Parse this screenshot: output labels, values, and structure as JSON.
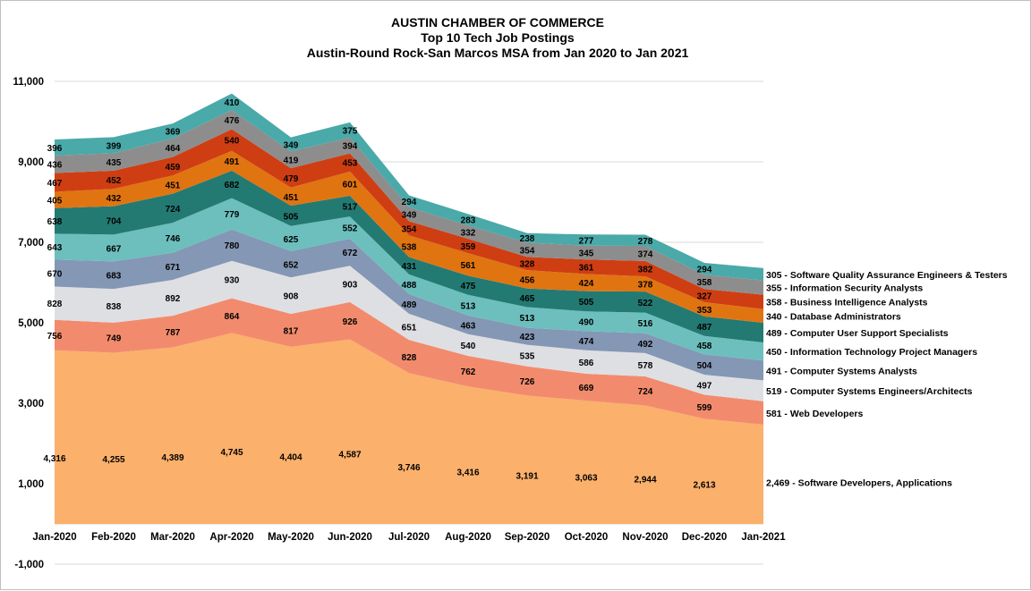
{
  "chart_data": {
    "type": "area",
    "stacked": true,
    "title": [
      "AUSTIN CHAMBER OF COMMERCE",
      "Top 10 Tech Job Postings",
      "Austin-Round Rock-San Marcos MSA from Jan 2020 to Jan 2021"
    ],
    "ylim": [
      -1000,
      11000
    ],
    "y_ticks": [
      -1000,
      1000,
      3000,
      5000,
      7000,
      9000,
      11000
    ],
    "y_tick_labels": [
      "-1,000",
      "1,000",
      "3,000",
      "5,000",
      "7,000",
      "9,000",
      "11,000"
    ],
    "grid": true,
    "categories": [
      "Jan-2020",
      "Feb-2020",
      "Mar-2020",
      "Apr-2020",
      "May-2020",
      "Jun-2020",
      "Jul-2020",
      "Aug-2020",
      "Sep-2020",
      "Oct-2020",
      "Nov-2020",
      "Dec-2020",
      "Jan-2021"
    ],
    "series": [
      {
        "name": "Software Developers, Applications",
        "color": "#fbb06b",
        "values": [
          4316,
          4255,
          4389,
          4745,
          4404,
          4587,
          3746,
          3416,
          3191,
          3063,
          2944,
          2613,
          2469
        ],
        "labels": [
          "4,316",
          "4,255",
          "4,389",
          "4,745",
          "4,404",
          "4,587",
          "3,746",
          "3,416",
          "3,191",
          "3,063",
          "2,944",
          "2,613",
          "2,469"
        ]
      },
      {
        "name": "Web Developers",
        "color": "#f28b6d",
        "values": [
          756,
          749,
          787,
          864,
          817,
          926,
          828,
          762,
          726,
          669,
          724,
          599,
          581
        ],
        "labels": [
          "756",
          "749",
          "787",
          "864",
          "817",
          "926",
          "828",
          "762",
          "726",
          "669",
          "724",
          "599",
          "581"
        ]
      },
      {
        "name": "Computer Systems Engineers/Architects",
        "color": "#dedfe3",
        "values": [
          828,
          838,
          892,
          930,
          908,
          903,
          651,
          540,
          535,
          586,
          578,
          497,
          519
        ],
        "labels": [
          "828",
          "838",
          "892",
          "930",
          "908",
          "903",
          "651",
          "540",
          "535",
          "586",
          "578",
          "497",
          "519"
        ]
      },
      {
        "name": "Computer Systems Analysts",
        "color": "#8497b4",
        "values": [
          670,
          683,
          671,
          780,
          652,
          672,
          489,
          463,
          423,
          474,
          492,
          504,
          491
        ],
        "labels": [
          "670",
          "683",
          "671",
          "780",
          "652",
          "672",
          "489",
          "463",
          "423",
          "474",
          "492",
          "504",
          "491"
        ]
      },
      {
        "name": "Information Technology Project Managers",
        "color": "#6cbfbd",
        "values": [
          643,
          667,
          746,
          779,
          625,
          552,
          488,
          513,
          513,
          490,
          516,
          458,
          450
        ],
        "labels": [
          "643",
          "667",
          "746",
          "779",
          "625",
          "552",
          "488",
          "513",
          "513",
          "490",
          "516",
          "458",
          "450"
        ]
      },
      {
        "name": "Computer User Support Specialists",
        "color": "#237a72",
        "values": [
          638,
          704,
          724,
          682,
          505,
          517,
          431,
          475,
          465,
          505,
          522,
          487,
          489
        ],
        "labels": [
          "638",
          "704",
          "724",
          "682",
          "505",
          "517",
          "431",
          "475",
          "465",
          "505",
          "522",
          "487",
          "489"
        ]
      },
      {
        "name": "Database Administrators",
        "color": "#e07411",
        "values": [
          405,
          432,
          451,
          491,
          451,
          601,
          538,
          561,
          456,
          424,
          378,
          353,
          340
        ],
        "labels": [
          "405",
          "432",
          "451",
          "491",
          "451",
          "601",
          "538",
          "561",
          "456",
          "424",
          "378",
          "353",
          "340"
        ]
      },
      {
        "name": "Business Intelligence Analysts",
        "color": "#cf3e12",
        "values": [
          467,
          452,
          459,
          540,
          479,
          453,
          354,
          359,
          328,
          361,
          382,
          327,
          358
        ],
        "labels": [
          "467",
          "452",
          "459",
          "540",
          "479",
          "453",
          "354",
          "359",
          "328",
          "361",
          "382",
          "327",
          "358"
        ]
      },
      {
        "name": "Information Security Analysts",
        "color": "#8d8d8d",
        "values": [
          436,
          435,
          464,
          476,
          419,
          394,
          349,
          332,
          354,
          345,
          374,
          358,
          355
        ],
        "labels": [
          "436",
          "435",
          "464",
          "476",
          "419",
          "394",
          "349",
          "332",
          "354",
          "345",
          "374",
          "358",
          "355"
        ]
      },
      {
        "name": "Software Quality Assurance Engineers & Testers",
        "color": "#4aa9a9",
        "values": [
          396,
          399,
          369,
          410,
          349,
          375,
          294,
          283,
          238,
          277,
          278,
          294,
          305
        ],
        "labels": [
          "396",
          "399",
          "369",
          "410",
          "349",
          "375",
          "294",
          "283",
          "238",
          "277",
          "278",
          "294",
          "305"
        ]
      }
    ],
    "last_point_labels": [
      "2,469 - Software Developers, Applications",
      "581 - Web Developers",
      "519 - Computer Systems Engineers/Architects",
      "491 - Computer Systems Analysts",
      "450 - Information Technology Project Managers",
      "489 - Computer User Support Specialists",
      "340 - Database Administrators",
      "358 - Business Intelligence Analysts",
      "355 - Information Security Analysts",
      "305 - Software Quality Assurance Engineers & Testers"
    ]
  }
}
